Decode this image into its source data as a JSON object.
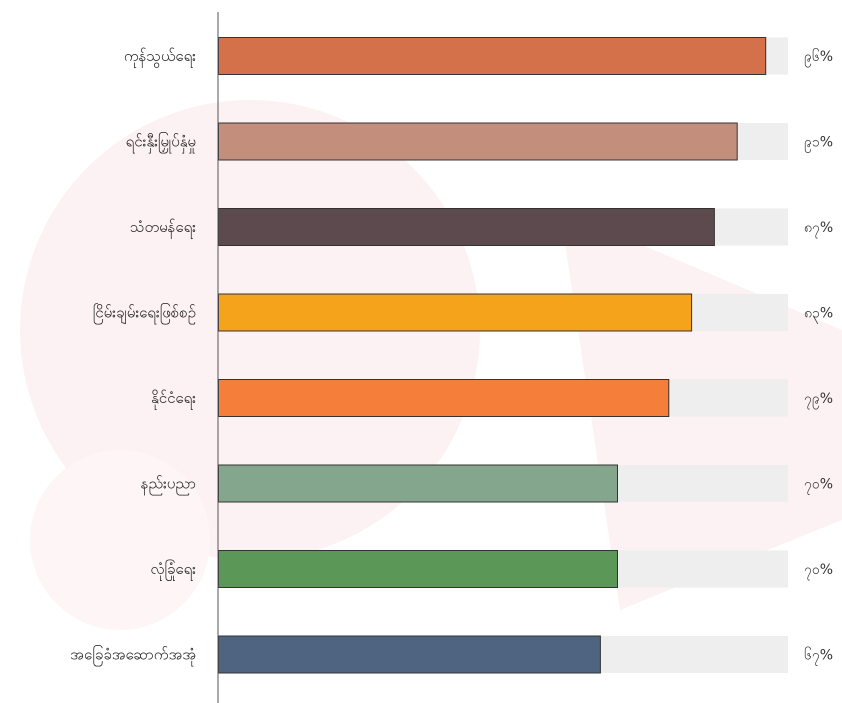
{
  "chart_data": {
    "type": "bar",
    "orientation": "horizontal",
    "categories": [
      "ကုန်သွယ်ရေး",
      "ရင်းနှီးမြှုပ်နှံမှု",
      "သံတမန်ရေး",
      "ငြိမ်းချမ်းရေးဖြစ်စဉ်",
      "နိုင်ငံရေး",
      "နည်းပညာ",
      "လုံခြုံရေး",
      "အခြေခံအဆောက်အအုံ"
    ],
    "values": [
      96,
      91,
      87,
      83,
      79,
      70,
      70,
      67
    ],
    "value_labels": [
      "၉၆%",
      "၉၁%",
      "၈၇%",
      "၈၃%",
      "၇၉%",
      "၇၀%",
      "၇၀%",
      "၆၇%"
    ],
    "colors": [
      "#D4714A",
      "#C48E7C",
      "#5C4A4E",
      "#F5A31A",
      "#F47E3A",
      "#84A68C",
      "#5B9857",
      "#4E6480"
    ],
    "track_color": "#EEEEEE",
    "xlim": [
      0,
      100
    ],
    "grid": false,
    "legend": "none",
    "title": "",
    "xlabel": "",
    "ylabel": ""
  }
}
